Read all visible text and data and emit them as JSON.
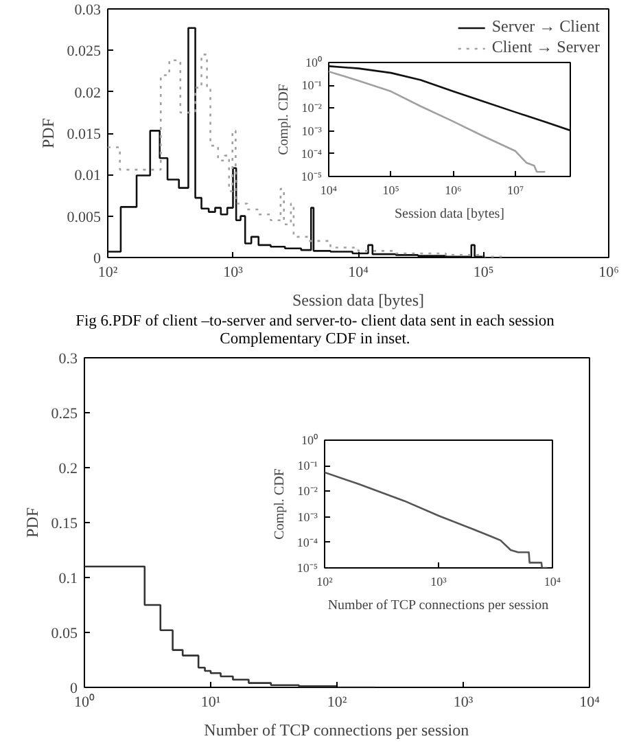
{
  "chart_data": [
    {
      "type": "step",
      "xlabel": "Session data [bytes]",
      "ylabel": "PDF",
      "log": "x",
      "legend": "top right",
      "xlim": [
        100,
        1000000
      ],
      "ylim": [
        0,
        0.03
      ],
      "xticks": [
        {
          "value": 100,
          "label": "10²"
        },
        {
          "value": 1000,
          "label": "10³"
        },
        {
          "value": 10000,
          "label": "10⁴"
        },
        {
          "value": 100000,
          "label": "10⁵"
        },
        {
          "value": 1000000,
          "label": "10⁶"
        }
      ],
      "yticks": [
        0,
        0.005,
        0.01,
        0.015,
        0.02,
        0.025,
        0.03
      ],
      "series": [
        {
          "name": "Server → Client",
          "color": "#111111",
          "line_style": "solid",
          "x": [
            100,
            127,
            170,
            218,
            260,
            300,
            370,
            440,
            500,
            560,
            640,
            720,
            800,
            900,
            1000,
            1060,
            1150,
            1250,
            1400,
            1600,
            2000,
            2600,
            3500,
            4200,
            4400,
            6000,
            9000,
            12000,
            13000,
            20000,
            30000,
            50000,
            80000,
            85000,
            100000
          ],
          "values": [
            0.0007,
            0.0061,
            0.0099,
            0.0153,
            0.012,
            0.0094,
            0.0084,
            0.0277,
            0.0072,
            0.0059,
            0.0055,
            0.006,
            0.0052,
            0.006,
            0.0108,
            0.0045,
            0.005,
            0.0017,
            0.0025,
            0.0015,
            0.0013,
            0.0011,
            0.0009,
            0.006,
            0.0008,
            0.0007,
            0.0005,
            0.0015,
            0.0004,
            0.0003,
            0.0002,
            0.0001,
            0.0015,
            0.0001,
            0
          ]
        },
        {
          "name": "Client → Server",
          "color": "#a0a0a0",
          "line_style": "dotted",
          "x": [
            100,
            125,
            265,
            310,
            380,
            500,
            560,
            620,
            660,
            760,
            860,
            930,
            990,
            1050,
            1300,
            1600,
            2000,
            2400,
            2550,
            2900,
            3050,
            4000,
            6000,
            10000,
            20000,
            50000,
            100000,
            150000
          ],
          "values": [
            0.0133,
            0.0106,
            0.022,
            0.0238,
            0.0175,
            0.0205,
            0.0245,
            0.0205,
            0.0135,
            0.0117,
            0.0123,
            0.008,
            0.0153,
            0.0065,
            0.0058,
            0.0052,
            0.0045,
            0.0083,
            0.004,
            0.0065,
            0.0025,
            0.002,
            0.0012,
            0.0008,
            0.0005,
            0.0003,
            0.0001,
            0.0001
          ]
        }
      ],
      "annotations": [
        "Fig 6.PDF of client –to-server and server-to- client data sent in each session",
        "Complementary CDF in inset."
      ]
    },
    {
      "type": "line",
      "xlabel": "Session data [bytes]",
      "ylabel": "Compl. CDF",
      "log": "xy",
      "xlim": [
        10000,
        76000000
      ],
      "ylim": [
        1e-05,
        1
      ],
      "xticks": [
        {
          "value": 10000,
          "label": "10⁴"
        },
        {
          "value": 100000,
          "label": "10⁵"
        },
        {
          "value": 1000000,
          "label": "10⁶"
        },
        {
          "value": 10000000,
          "label": "10⁷"
        }
      ],
      "yticks": [
        {
          "value": 1e-05,
          "label": "10⁻⁵"
        },
        {
          "value": 0.0001,
          "label": "10⁻⁴"
        },
        {
          "value": 0.001,
          "label": "10⁻³"
        },
        {
          "value": 0.01,
          "label": "10⁻²"
        },
        {
          "value": 0.1,
          "label": "10⁻¹"
        },
        {
          "value": 1,
          "label": "10⁰"
        }
      ],
      "series": [
        {
          "color": "#111111",
          "line_style": "solid",
          "x": [
            10000,
            30000,
            100000,
            300000,
            1000000,
            3000000,
            10000000,
            30000000,
            76000000
          ],
          "values": [
            0.69,
            0.55,
            0.35,
            0.17,
            0.054,
            0.02,
            0.0066,
            0.0025,
            0.00105
          ]
        },
        {
          "color": "#a0a0a0",
          "line_style": "solid",
          "x": [
            10000,
            30000,
            100000,
            300000,
            1000000,
            3000000,
            10000000,
            13000000,
            15000000,
            20000000,
            22000000,
            30000000
          ],
          "values": [
            0.4,
            0.16,
            0.054,
            0.012,
            0.0026,
            0.0006,
            0.00013,
            6e-05,
            4e-05,
            3e-05,
            1.6e-05,
            1.6e-05
          ]
        }
      ]
    },
    {
      "type": "step",
      "xlabel": "Number of TCP connections per session",
      "ylabel": "PDF",
      "log": "x",
      "xlim": [
        1,
        10000
      ],
      "ylim": [
        0,
        0.3
      ],
      "xticks": [
        {
          "value": 1,
          "label": "10⁰"
        },
        {
          "value": 10,
          "label": "10¹"
        },
        {
          "value": 100,
          "label": "10²"
        },
        {
          "value": 1000,
          "label": "10³"
        },
        {
          "value": 10000,
          "label": "10⁴"
        }
      ],
      "yticks": [
        0,
        0.05,
        0.1,
        0.15,
        0.2,
        0.25,
        0.3
      ],
      "series": [
        {
          "color": "#333333",
          "line_style": "solid",
          "x": [
            1,
            3,
            4,
            5,
            6,
            8,
            9,
            10,
            12,
            15,
            20,
            30,
            50,
            100,
            200
          ],
          "values": [
            0.11,
            0.075,
            0.052,
            0.034,
            0.029,
            0.018,
            0.015,
            0.013,
            0.01,
            0.007,
            0.004,
            0.002,
            0.001,
            0,
            0
          ]
        }
      ]
    },
    {
      "type": "line",
      "xlabel": "Number of TCP connections per session",
      "ylabel": "Compl. CDF",
      "log": "xy",
      "xlim": [
        100,
        10000
      ],
      "ylim": [
        1e-05,
        1
      ],
      "xticks": [
        {
          "value": 100,
          "label": "10²"
        },
        {
          "value": 1000,
          "label": "10³"
        },
        {
          "value": 10000,
          "label": "10⁴"
        }
      ],
      "yticks": [
        {
          "value": 1e-05,
          "label": "10⁻⁵"
        },
        {
          "value": 0.0001,
          "label": "10⁻⁴"
        },
        {
          "value": 0.001,
          "label": "10⁻³"
        },
        {
          "value": 0.01,
          "label": "10⁻²"
        },
        {
          "value": 0.1,
          "label": "10⁻¹"
        },
        {
          "value": 1,
          "label": "10⁰"
        }
      ],
      "series": [
        {
          "color": "#555555",
          "line_style": "solid",
          "x": [
            100,
            200,
            500,
            1000,
            2000,
            3000,
            3500,
            4300,
            5000,
            6200,
            6300,
            8000,
            8100,
            9000
          ],
          "values": [
            0.055,
            0.019,
            0.0042,
            0.0011,
            0.00033,
            0.00016,
            0.00012,
            5e-05,
            4.1e-05,
            4.1e-05,
            1.6e-05,
            1.6e-05,
            1e-05,
            1e-05
          ]
        }
      ]
    }
  ]
}
